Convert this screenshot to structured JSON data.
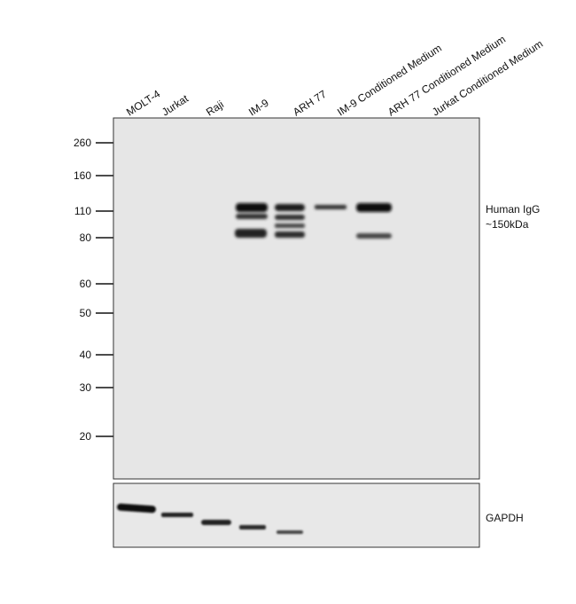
{
  "lanes": [
    "MOLT-4",
    "Jurkat",
    "Raji",
    "IM-9",
    "ARH 77",
    "IM-9 Conditioned Medium",
    "ARH 77 Conditioned Medium",
    "Jurkat Conditioned Medium"
  ],
  "markers": [
    "260",
    "160",
    "110",
    "80",
    "60",
    "50",
    "40",
    "30",
    "20"
  ],
  "main_blot_label": [
    "Human IgG",
    "~150kDa"
  ],
  "lower_blot_label": "GAPDH"
}
